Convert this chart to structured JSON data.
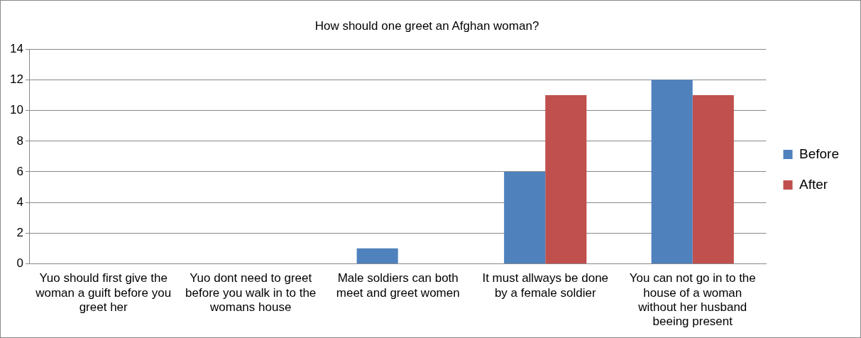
{
  "chart_data": {
    "type": "bar",
    "title": "How should one greet an Afghan woman?",
    "categories": [
      "Yuo should first give the woman a guift before you greet her",
      "Yuo dont need to greet before you walk in to the womans house",
      "Male soldiers can both meet and greet women",
      "It must allways be done by a female soldier",
      "You can not go in to the house of a woman without her husband beeing present"
    ],
    "series": [
      {
        "name": "Before",
        "color": "#4f81bd",
        "values": [
          0,
          0,
          1,
          6,
          12
        ]
      },
      {
        "name": "After",
        "color": "#c0504d",
        "values": [
          0,
          0,
          0,
          11,
          11
        ]
      }
    ],
    "ylim": [
      0,
      14
    ],
    "yticks": [
      0,
      2,
      4,
      6,
      8,
      10,
      12,
      14
    ],
    "grid": "y",
    "legend": "right"
  }
}
